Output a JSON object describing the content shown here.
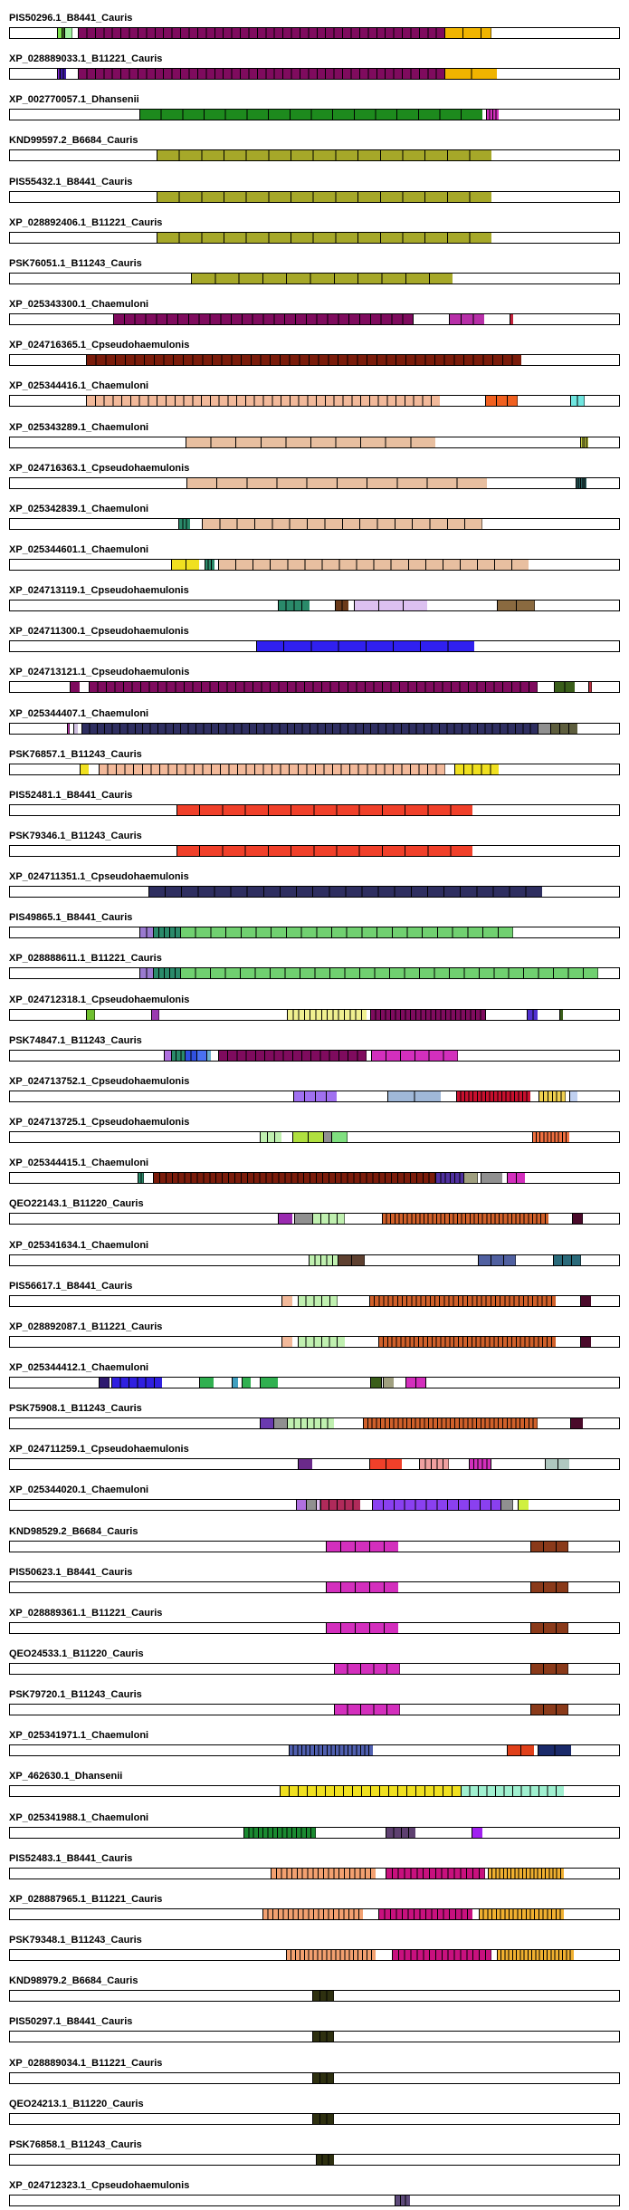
{
  "tracks": [
    {
      "label": "PIS50296.1_B8441_Cauris",
      "segments": [
        [
          0.077,
          0.085,
          "#7be04a",
          1
        ],
        [
          0.085,
          0.089,
          "#4e7a2b",
          1
        ],
        [
          0.089,
          0.102,
          "#a0f0a0",
          1
        ],
        [
          0.111,
          0.713,
          "#7f0b5e",
          43
        ],
        [
          0.713,
          0.773,
          "#f0b400",
          2
        ],
        [
          0.773,
          0.79,
          "#f0b400",
          1
        ]
      ]
    },
    {
      "label": "XP_028889033.1_B11221_Cauris",
      "segments": [
        [
          0.077,
          0.081,
          "#8a2be2",
          1
        ],
        [
          0.081,
          0.092,
          "#3c1aa6",
          2
        ],
        [
          0.111,
          0.713,
          "#7f0b5e",
          43
        ],
        [
          0.713,
          0.8,
          "#f0b400",
          2
        ]
      ]
    },
    {
      "label": "XP_002770057.1_Dhansenii",
      "segments": [
        [
          0.212,
          0.775,
          "#1d8a1d",
          16
        ],
        [
          0.782,
          0.803,
          "#d32fbd",
          4
        ]
      ]
    },
    {
      "label": "KND99597.2_B6684_Cauris",
      "segments": [
        [
          0.24,
          0.79,
          "#a6a829",
          15
        ]
      ]
    },
    {
      "label": "PIS55432.1_B8441_Cauris",
      "segments": [
        [
          0.24,
          0.79,
          "#a6a829",
          15
        ]
      ]
    },
    {
      "label": "XP_028892406.1_B11221_Cauris",
      "segments": [
        [
          0.24,
          0.79,
          "#a6a829",
          15
        ]
      ]
    },
    {
      "label": "PSK76051.1_B11243_Cauris",
      "segments": [
        [
          0.297,
          0.727,
          "#a6a829",
          11
        ]
      ]
    },
    {
      "label": "XP_025343300.1_Chaemuloni",
      "segments": [
        [
          0.17,
          0.662,
          "#7f0b5e",
          28
        ],
        [
          0.72,
          0.779,
          "#b72fa8",
          3
        ],
        [
          0.82,
          0.826,
          "#c4213b",
          1
        ]
      ]
    },
    {
      "label": "XP_024716365.1_Cpseudohaemulonis",
      "segments": [
        [
          0.125,
          0.84,
          "#7a1c0b",
          45
        ]
      ]
    },
    {
      "label": "XP_025344416.1_Chaemuloni",
      "segments": [
        [
          0.125,
          0.706,
          "#f2b99a",
          40
        ],
        [
          0.78,
          0.833,
          "#f06020",
          3
        ],
        [
          0.92,
          0.943,
          "#70e6e0",
          2
        ]
      ]
    },
    {
      "label": "XP_025343289.1_Chaemuloni",
      "segments": [
        [
          0.288,
          0.698,
          "#e8bfa0",
          10
        ],
        [
          0.936,
          0.95,
          "#c8d040",
          4
        ]
      ]
    },
    {
      "label": "XP_024716363.1_Cpseudohaemulonis",
      "segments": [
        [
          0.29,
          0.783,
          "#e8bfa0",
          10
        ],
        [
          0.929,
          0.947,
          "#2a5e5e",
          5
        ]
      ]
    },
    {
      "label": "XP_025342839.1_Chaemuloni",
      "segments": [
        [
          0.276,
          0.295,
          "#2a8a6a",
          3
        ],
        [
          0.315,
          0.775,
          "#e8bfa0",
          16
        ]
      ]
    },
    {
      "label": "XP_025344601.1_Chaemuloni",
      "segments": [
        [
          0.264,
          0.311,
          "#f0e020",
          2
        ],
        [
          0.32,
          0.336,
          "#2a8a6a",
          3
        ],
        [
          0.342,
          0.852,
          "#e8bfa0",
          18
        ]
      ]
    },
    {
      "label": "XP_024713119.1_Cpseudohaemulonis",
      "segments": [
        [
          0.44,
          0.492,
          "#2a8a6a",
          4
        ],
        [
          0.534,
          0.556,
          "#6b3a1a",
          2
        ],
        [
          0.565,
          0.685,
          "#dcc0f0",
          3
        ],
        [
          0.8,
          0.862,
          "#8a6a40",
          2
        ]
      ]
    },
    {
      "label": "XP_024711300.1_Cpseudohaemulonis",
      "segments": [
        [
          0.404,
          0.763,
          "#3020f0",
          8
        ]
      ]
    },
    {
      "label": "XP_024713121.1_Cpseudohaemulonis",
      "segments": [
        [
          0.098,
          0.114,
          "#7f0b5e",
          1
        ],
        [
          0.13,
          0.866,
          "#7f0b5e",
          52
        ],
        [
          0.893,
          0.927,
          "#3a5e1a",
          2
        ],
        [
          0.95,
          0.955,
          "#b73040",
          1
        ]
      ]
    },
    {
      "label": "XP_025344407.1_Chaemuloni",
      "segments": [
        [
          0.094,
          0.098,
          "#b72fa8",
          1
        ],
        [
          0.104,
          0.112,
          "#d0c0e0",
          1
        ],
        [
          0.117,
          0.866,
          "#2e2e60",
          60
        ],
        [
          0.866,
          0.887,
          "#909090",
          1
        ],
        [
          0.887,
          0.932,
          "#5e5e3e",
          3
        ]
      ]
    },
    {
      "label": "PSK76857.1_B11243_Cauris",
      "segments": [
        [
          0.115,
          0.13,
          "#f0e020",
          1
        ],
        [
          0.146,
          0.714,
          "#f2b99a",
          40
        ],
        [
          0.729,
          0.802,
          "#f0e020",
          5
        ]
      ]
    },
    {
      "label": "PIS52481.1_B8441_Cauris",
      "segments": [
        [
          0.273,
          0.76,
          "#f0402a",
          13
        ]
      ]
    },
    {
      "label": "PSK79346.1_B11243_Cauris",
      "segments": [
        [
          0.273,
          0.76,
          "#f0402a",
          13
        ]
      ]
    },
    {
      "label": "XP_024711351.1_Cpseudohaemulonis",
      "segments": [
        [
          0.227,
          0.873,
          "#2e2e60",
          24
        ]
      ]
    },
    {
      "label": "PIS49865.1_B8441_Cauris",
      "segments": [
        [
          0.213,
          0.235,
          "#9a7ad0",
          2
        ],
        [
          0.235,
          0.28,
          "#2a8a6a",
          5
        ],
        [
          0.28,
          0.826,
          "#70d070",
          22
        ]
      ]
    },
    {
      "label": "XP_028888611.1_B11221_Cauris",
      "segments": [
        [
          0.213,
          0.235,
          "#9a7ad0",
          2
        ],
        [
          0.235,
          0.28,
          "#2a8a6a",
          5
        ],
        [
          0.28,
          0.966,
          "#70d070",
          28
        ]
      ]
    },
    {
      "label": "XP_024712318.1_Cpseudohaemulonis",
      "segments": [
        [
          0.125,
          0.139,
          "#70c030",
          1
        ],
        [
          0.232,
          0.245,
          "#9a3ab0",
          1
        ],
        [
          0.455,
          0.586,
          "#f0f090",
          14
        ],
        [
          0.592,
          0.781,
          "#7f0b5e",
          23
        ],
        [
          0.848,
          0.867,
          "#5030d0",
          2
        ],
        [
          0.902,
          0.908,
          "#3a5e1a",
          1
        ]
      ]
    },
    {
      "label": "PSK74847.1_B11243_Cauris",
      "segments": [
        [
          0.252,
          0.264,
          "#b070e0",
          1
        ],
        [
          0.264,
          0.287,
          "#2a8a6a",
          3
        ],
        [
          0.287,
          0.306,
          "#3050e0",
          2
        ],
        [
          0.306,
          0.322,
          "#4a70f0",
          1
        ],
        [
          0.322,
          0.33,
          "#70b0d0",
          1
        ],
        [
          0.342,
          0.585,
          "#7f0b5e",
          16
        ],
        [
          0.593,
          0.735,
          "#d32fbd",
          6
        ]
      ]
    },
    {
      "label": "XP_024713752.1_Cpseudohaemulonis",
      "segments": [
        [
          0.465,
          0.536,
          "#a070f0",
          4
        ],
        [
          0.62,
          0.708,
          "#a0b8d8",
          2
        ],
        [
          0.733,
          0.855,
          "#c8102e",
          18
        ],
        [
          0.868,
          0.912,
          "#f0d050",
          6
        ],
        [
          0.918,
          0.932,
          "#c0d0f0",
          1
        ]
      ]
    },
    {
      "label": "XP_024713725.1_Cpseudohaemulonis",
      "segments": [
        [
          0.41,
          0.446,
          "#c0f0b0",
          3
        ],
        [
          0.463,
          0.514,
          "#b0e040",
          2
        ],
        [
          0.514,
          0.528,
          "#909090",
          1
        ],
        [
          0.528,
          0.554,
          "#80e080",
          1
        ],
        [
          0.858,
          0.919,
          "#f07040",
          10
        ]
      ]
    },
    {
      "label": "XP_025344415.1_Chaemuloni",
      "segments": [
        [
          0.21,
          0.22,
          "#2a8a6a",
          2
        ],
        [
          0.235,
          0.698,
          "#7a1c0b",
          45
        ],
        [
          0.698,
          0.745,
          "#5030a0",
          6
        ],
        [
          0.745,
          0.768,
          "#a0a080",
          1
        ],
        [
          0.772,
          0.808,
          "#909090",
          1
        ],
        [
          0.816,
          0.846,
          "#d32fbd",
          2
        ]
      ]
    },
    {
      "label": "QEO22143.1_B11220_Cauris",
      "segments": [
        [
          0.44,
          0.464,
          "#9a2ab0",
          1
        ],
        [
          0.467,
          0.497,
          "#909090",
          1
        ],
        [
          0.497,
          0.55,
          "#c0f0b0",
          4
        ],
        [
          0.61,
          0.884,
          "#d0602a",
          40
        ],
        [
          0.923,
          0.94,
          "#4a0a2a",
          1
        ]
      ]
    },
    {
      "label": "XP_025341634.1_Chaemuloni",
      "segments": [
        [
          0.49,
          0.538,
          "#c0f0b0",
          5
        ],
        [
          0.538,
          0.582,
          "#5e4030",
          2
        ],
        [
          0.768,
          0.83,
          "#5060a0",
          3
        ],
        [
          0.892,
          0.937,
          "#2a6a7a",
          3
        ]
      ]
    },
    {
      "label": "PIS56617.1_B8441_Cauris",
      "segments": [
        [
          0.446,
          0.464,
          "#f2b99a",
          1
        ],
        [
          0.473,
          0.538,
          "#c0f0b0",
          5
        ],
        [
          0.59,
          0.896,
          "#d0602a",
          40
        ],
        [
          0.936,
          0.954,
          "#4a0a2a",
          1
        ]
      ]
    },
    {
      "label": "XP_028892087.1_B11221_Cauris",
      "segments": [
        [
          0.446,
          0.464,
          "#f2b99a",
          1
        ],
        [
          0.473,
          0.55,
          "#c0f0b0",
          6
        ],
        [
          0.605,
          0.896,
          "#d0602a",
          40
        ],
        [
          0.936,
          0.954,
          "#4a0a2a",
          1
        ]
      ]
    },
    {
      "label": "XP_025344412.1_Chaemuloni",
      "segments": [
        [
          0.146,
          0.163,
          "#2e1a70",
          1
        ],
        [
          0.166,
          0.25,
          "#3020e0",
          6
        ],
        [
          0.31,
          0.335,
          "#30b050",
          1
        ],
        [
          0.364,
          0.375,
          "#40a0c0",
          1
        ],
        [
          0.38,
          0.395,
          "#30b050",
          1
        ],
        [
          0.41,
          0.44,
          "#30b050",
          1
        ],
        [
          0.592,
          0.61,
          "#3a5e1a",
          1
        ],
        [
          0.612,
          0.63,
          "#a0a080",
          1
        ],
        [
          0.65,
          0.683,
          "#d32fbd",
          2
        ]
      ]
    },
    {
      "label": "PSK75908.1_B11243_Cauris",
      "segments": [
        [
          0.41,
          0.433,
          "#6a3ab0",
          1
        ],
        [
          0.433,
          0.455,
          "#909090",
          1
        ],
        [
          0.455,
          0.532,
          "#c0f0b0",
          7
        ],
        [
          0.58,
          0.866,
          "#d0602a",
          40
        ],
        [
          0.92,
          0.941,
          "#4a0a2a",
          1
        ]
      ]
    },
    {
      "label": "XP_024711259.1_Cpseudohaemulonis",
      "segments": [
        [
          0.472,
          0.496,
          "#6a2a8a",
          1
        ],
        [
          0.59,
          0.644,
          "#f0402a",
          2
        ],
        [
          0.672,
          0.72,
          "#f0a0a0",
          5
        ],
        [
          0.754,
          0.79,
          "#d32fbd",
          5
        ],
        [
          0.878,
          0.919,
          "#b0c8c0",
          2
        ]
      ]
    },
    {
      "label": "XP_025344020.1_Chaemuloni",
      "segments": [
        [
          0.47,
          0.486,
          "#b070e0",
          1
        ],
        [
          0.486,
          0.502,
          "#909090",
          1
        ],
        [
          0.502,
          0.509,
          "#e0c0f0",
          1
        ],
        [
          0.509,
          0.575,
          "#b02a5a",
          5
        ],
        [
          0.594,
          0.806,
          "#8a40f0",
          12
        ],
        [
          0.806,
          0.826,
          "#909090",
          1
        ],
        [
          0.833,
          0.851,
          "#d0f040",
          1
        ]
      ]
    },
    {
      "label": "KND98529.2_B6684_Cauris",
      "segments": [
        [
          0.518,
          0.637,
          "#d32fbd",
          5
        ],
        [
          0.855,
          0.917,
          "#8a3a1a",
          3
        ]
      ]
    },
    {
      "label": "PIS50623.1_B8441_Cauris",
      "segments": [
        [
          0.518,
          0.637,
          "#d32fbd",
          5
        ],
        [
          0.855,
          0.917,
          "#8a3a1a",
          3
        ]
      ]
    },
    {
      "label": "XP_028889361.1_B11221_Cauris",
      "segments": [
        [
          0.518,
          0.637,
          "#d32fbd",
          5
        ],
        [
          0.855,
          0.917,
          "#8a3a1a",
          3
        ]
      ]
    },
    {
      "label": "QEO24533.1_B11220_Cauris",
      "segments": [
        [
          0.532,
          0.64,
          "#d32fbd",
          5
        ],
        [
          0.855,
          0.917,
          "#8a3a1a",
          3
        ]
      ]
    },
    {
      "label": "PSK79720.1_B11243_Cauris",
      "segments": [
        [
          0.532,
          0.64,
          "#d32fbd",
          5
        ],
        [
          0.855,
          0.917,
          "#8a3a1a",
          3
        ]
      ]
    },
    {
      "label": "XP_025341971.1_Chaemuloni",
      "segments": [
        [
          0.458,
          0.596,
          "#5060b0",
          20
        ],
        [
          0.816,
          0.861,
          "#e0401a",
          2
        ],
        [
          0.867,
          0.922,
          "#1a2a6a",
          2
        ]
      ]
    },
    {
      "label": "XP_462630.1_Dhansenii",
      "segments": [
        [
          0.443,
          0.74,
          "#f0e020",
          20
        ],
        [
          0.74,
          0.91,
          "#a0f0d0",
          12
        ]
      ]
    },
    {
      "label": "XP_025341988.1_Chaemuloni",
      "segments": [
        [
          0.384,
          0.502,
          "#1a8a30",
          15
        ],
        [
          0.616,
          0.666,
          "#5e4070",
          4
        ],
        [
          0.758,
          0.776,
          "#a020f0",
          1
        ]
      ]
    },
    {
      "label": "PIS52483.1_B8441_Cauris",
      "segments": [
        [
          0.428,
          0.6,
          "#f2a070",
          20
        ],
        [
          0.617,
          0.78,
          "#c8107e",
          16
        ],
        [
          0.785,
          0.91,
          "#f0b030",
          20
        ]
      ]
    },
    {
      "label": "XP_028887965.1_B11221_Cauris",
      "segments": [
        [
          0.414,
          0.58,
          "#f2a070",
          20
        ],
        [
          0.605,
          0.76,
          "#c8107e",
          16
        ],
        [
          0.77,
          0.91,
          "#f0b030",
          20
        ]
      ]
    },
    {
      "label": "PSK79348.1_B11243_Cauris",
      "segments": [
        [
          0.453,
          0.6,
          "#f2a070",
          20
        ],
        [
          0.627,
          0.79,
          "#c8107e",
          16
        ],
        [
          0.8,
          0.926,
          "#f0b030",
          20
        ]
      ]
    },
    {
      "label": "KND98979.2_B6684_Cauris",
      "segments": [
        [
          0.497,
          0.532,
          "#2e3010",
          3
        ]
      ]
    },
    {
      "label": "PIS50297.1_B8441_Cauris",
      "segments": [
        [
          0.497,
          0.532,
          "#2e3010",
          3
        ]
      ]
    },
    {
      "label": "XP_028889034.1_B11221_Cauris",
      "segments": [
        [
          0.497,
          0.532,
          "#2e3010",
          3
        ]
      ]
    },
    {
      "label": "QEO24213.1_B11220_Cauris",
      "segments": [
        [
          0.497,
          0.532,
          "#2e3010",
          3
        ]
      ]
    },
    {
      "label": "PSK76858.1_B11243_Cauris",
      "segments": [
        [
          0.502,
          0.532,
          "#2e3010",
          3
        ]
      ]
    },
    {
      "label": "XP_024712323.1_Cpseudohaemulonis",
      "segments": [
        [
          0.631,
          0.657,
          "#5e4a7a",
          3
        ]
      ]
    }
  ]
}
